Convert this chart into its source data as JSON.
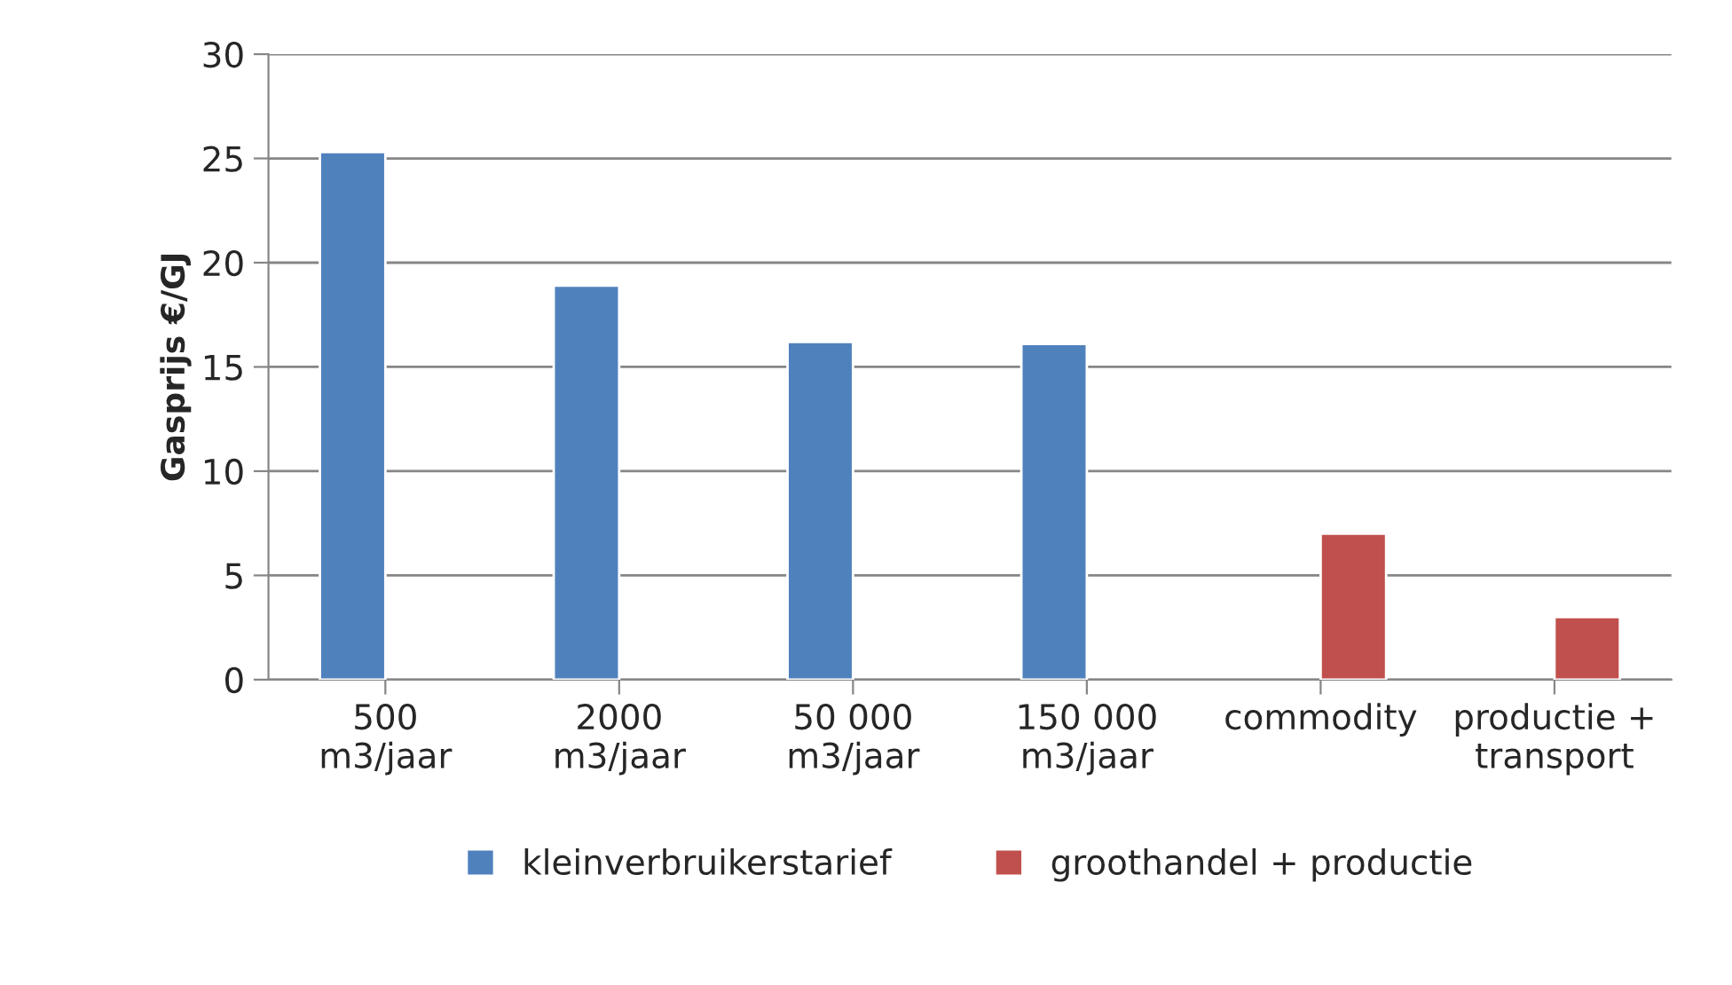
{
  "chart_data": {
    "type": "bar",
    "ylabel": "Gasprijs €/GJ",
    "categories": [
      "500\nm3/jaar",
      "2000\nm3/jaar",
      "50 000\nm3/jaar",
      "150 000\nm3/jaar",
      "commodity",
      "productie +\ntransport"
    ],
    "series": [
      {
        "name": "kleinverbruikerstarief",
        "color": "#4f81bd",
        "values": [
          25.3,
          18.9,
          16.2,
          16.1,
          null,
          null
        ]
      },
      {
        "name": "groothandel + productie",
        "color": "#c0504d",
        "values": [
          null,
          null,
          null,
          null,
          7.0,
          3.0
        ]
      }
    ],
    "ylim": [
      0,
      30
    ],
    "yticks": [
      0,
      5,
      10,
      15,
      20,
      25,
      30
    ],
    "grid": "y",
    "legend": "bottom"
  }
}
